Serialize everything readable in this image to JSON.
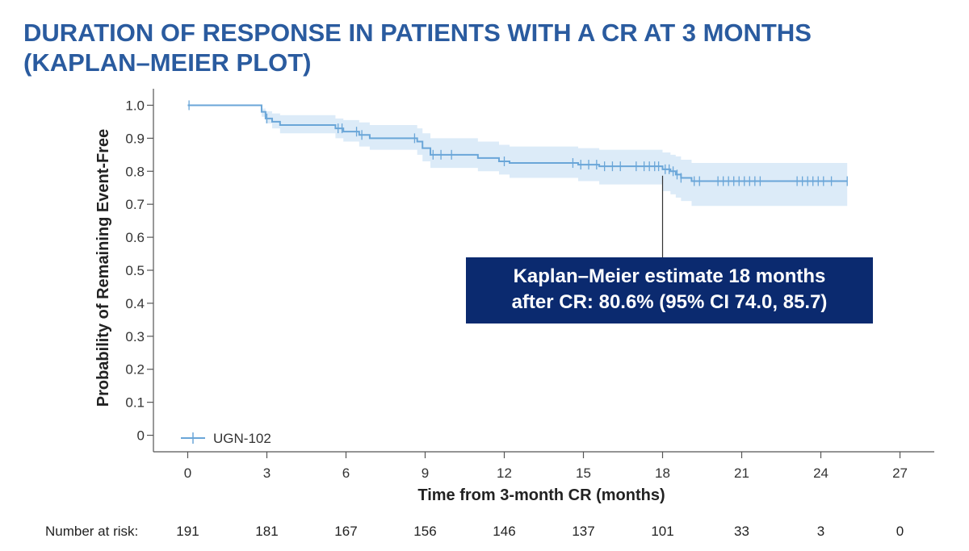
{
  "title_lines": [
    "DURATION OF RESPONSE IN PATIENTS WITH A CR AT 3 MONTHS",
    "(KAPLAN–MEIER PLOT)"
  ],
  "colors": {
    "title": "#2a5b9f",
    "curve": "#6aa6d8",
    "ci_band": "#dcebf8",
    "callout_bg": "#0b2a6f",
    "callout_text": "#ffffff"
  },
  "annotation": {
    "lines": [
      "Kaplan–Meier estimate 18 months",
      "after CR: 80.6% (95% CI 74.0, 85.7)"
    ],
    "x": 18.0
  },
  "number_at_risk": {
    "label": "Number at risk:",
    "values": [
      "191",
      "181",
      "167",
      "156",
      "146",
      "137",
      "101",
      "33",
      "3",
      "0"
    ]
  },
  "chart_data": {
    "type": "line",
    "xlabel": "Time from 3-month CR (months)",
    "ylabel": "Probability of Remaining Event-Free",
    "xlim": [
      -1.3,
      28.3
    ],
    "ylim": [
      -0.05,
      1.05
    ],
    "x_ticks": [
      0,
      3,
      6,
      9,
      12,
      15,
      18,
      21,
      24,
      27
    ],
    "x_tick_labels": [
      "0",
      "3",
      "6",
      "9",
      "12",
      "15",
      "18",
      "21",
      "24",
      "27"
    ],
    "y_ticks": [
      0,
      0.1,
      0.2,
      0.3,
      0.4,
      0.5,
      0.6,
      0.7,
      0.8,
      0.9,
      1.0
    ],
    "y_tick_labels": [
      "0",
      "0.1",
      "0.2",
      "0.3",
      "0.4",
      "0.5",
      "0.6",
      "0.7",
      "0.8",
      "0.9",
      "1.0"
    ],
    "grid": false,
    "legend_position": "bottom-left",
    "series": [
      {
        "name": "UGN-102",
        "step": [
          [
            0,
            1.0
          ],
          [
            2.8,
            0.98
          ],
          [
            2.95,
            0.96
          ],
          [
            3.2,
            0.95
          ],
          [
            3.5,
            0.94
          ],
          [
            5.6,
            0.93
          ],
          [
            5.9,
            0.92
          ],
          [
            6.5,
            0.91
          ],
          [
            6.9,
            0.9
          ],
          [
            8.7,
            0.89
          ],
          [
            8.9,
            0.87
          ],
          [
            9.2,
            0.85
          ],
          [
            11.0,
            0.84
          ],
          [
            11.8,
            0.83
          ],
          [
            12.2,
            0.825
          ],
          [
            14.8,
            0.82
          ],
          [
            15.6,
            0.815
          ],
          [
            18.0,
            0.806
          ],
          [
            18.3,
            0.8
          ],
          [
            18.5,
            0.79
          ],
          [
            18.7,
            0.78
          ],
          [
            19.1,
            0.77
          ],
          [
            25.0,
            0.77
          ]
        ],
        "ci_lower": [
          [
            0,
            1.0
          ],
          [
            2.8,
            0.965
          ],
          [
            2.95,
            0.945
          ],
          [
            3.2,
            0.93
          ],
          [
            3.5,
            0.915
          ],
          [
            5.6,
            0.9
          ],
          [
            5.9,
            0.89
          ],
          [
            6.5,
            0.875
          ],
          [
            6.9,
            0.865
          ],
          [
            8.7,
            0.85
          ],
          [
            8.9,
            0.83
          ],
          [
            9.2,
            0.81
          ],
          [
            11.0,
            0.8
          ],
          [
            11.8,
            0.79
          ],
          [
            12.2,
            0.78
          ],
          [
            14.8,
            0.77
          ],
          [
            15.6,
            0.76
          ],
          [
            18.0,
            0.74
          ],
          [
            18.3,
            0.73
          ],
          [
            18.5,
            0.72
          ],
          [
            18.7,
            0.71
          ],
          [
            19.1,
            0.695
          ],
          [
            25.0,
            0.695
          ]
        ],
        "ci_upper": [
          [
            0,
            1.0
          ],
          [
            2.8,
            0.99
          ],
          [
            2.95,
            0.982
          ],
          [
            3.2,
            0.975
          ],
          [
            3.5,
            0.97
          ],
          [
            5.6,
            0.96
          ],
          [
            5.9,
            0.955
          ],
          [
            6.5,
            0.948
          ],
          [
            6.9,
            0.94
          ],
          [
            8.7,
            0.93
          ],
          [
            8.9,
            0.915
          ],
          [
            9.2,
            0.9
          ],
          [
            11.0,
            0.89
          ],
          [
            11.8,
            0.88
          ],
          [
            12.2,
            0.875
          ],
          [
            14.8,
            0.87
          ],
          [
            15.6,
            0.865
          ],
          [
            18.0,
            0.857
          ],
          [
            18.3,
            0.85
          ],
          [
            18.5,
            0.845
          ],
          [
            18.7,
            0.835
          ],
          [
            19.1,
            0.825
          ],
          [
            25.0,
            0.825
          ]
        ],
        "censored": [
          0.05,
          3.0,
          5.7,
          5.85,
          6.4,
          6.6,
          8.6,
          9.3,
          9.6,
          10.0,
          12.0,
          14.6,
          14.9,
          15.2,
          15.5,
          15.8,
          16.1,
          16.4,
          17.0,
          17.3,
          17.5,
          17.7,
          17.85,
          18.1,
          18.25,
          18.4,
          18.55,
          18.7,
          19.2,
          19.4,
          20.1,
          20.3,
          20.5,
          20.7,
          20.9,
          21.1,
          21.3,
          21.5,
          21.7,
          23.1,
          23.3,
          23.5,
          23.7,
          23.9,
          24.1,
          24.4,
          25.0
        ]
      }
    ]
  }
}
